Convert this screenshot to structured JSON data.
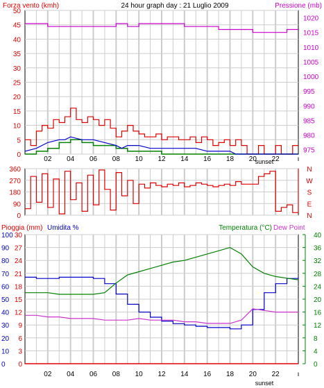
{
  "header": {
    "left_label": "Forza vento (kmh)",
    "title": "24 hour graph day : 21 Luglio 2009",
    "right_label": "Pressione (mb)"
  },
  "lower_header": {
    "rain_label": "Pioggia (mm)",
    "humidity_label": "Umidita %",
    "temp_label": "Temperatura (°C)",
    "dew_label": "Dew Point"
  },
  "sunset_label": "sunset",
  "colors": {
    "wind_gust": "#dd0000",
    "wind_avg": "#0000cc",
    "wind_low": "#008000",
    "pressure": "#cc00cc",
    "direction": "#dd0000",
    "rain": "#dd0000",
    "humidity": "#0000cc",
    "temperature": "#008000",
    "dew_point": "#cc33cc",
    "grid": "#cccccc",
    "frame": "#000000"
  },
  "chart_data": [
    {
      "type": "line",
      "title": "24 hour graph day : 21 Luglio 2009",
      "x_tick_labels": [
        "02",
        "04",
        "06",
        "08",
        "10",
        "12",
        "14",
        "16",
        "18",
        "20",
        "22"
      ],
      "x_range_hours": [
        0,
        24
      ],
      "y_left_label": "Forza vento (kmh)",
      "y_left_ticks": [
        0,
        5,
        10,
        15,
        20,
        25,
        30,
        35,
        40,
        45,
        50
      ],
      "y_left_range": [
        0,
        50
      ],
      "y_right_label": "Pressione (mb)",
      "y_right_ticks": [
        975,
        980,
        985,
        990,
        995,
        1000,
        1005,
        1010,
        1015,
        1020
      ],
      "y_right_range": [
        973.5,
        1022.5
      ],
      "grid": true,
      "series": [
        {
          "name": "Forza vento (kmh)",
          "axis": "left",
          "x": [
            0,
            0.5,
            1,
            1.5,
            2,
            2.5,
            3,
            3.5,
            4,
            4.5,
            5,
            5.5,
            6,
            6.5,
            7,
            7.5,
            8,
            8.5,
            9,
            9.5,
            10,
            10.5,
            11,
            11.5,
            12,
            12.5,
            13,
            13.5,
            14,
            14.5,
            15,
            15.5,
            16,
            16.5,
            17,
            17.5,
            18,
            18.5,
            19,
            19.5,
            20,
            20.5,
            21,
            21.5,
            22,
            22.5,
            23,
            23.5,
            24
          ],
          "y": [
            5,
            3,
            8,
            10,
            9,
            12,
            11,
            13,
            16,
            12,
            11,
            13,
            12,
            10,
            12,
            9,
            6,
            8,
            10,
            8,
            7,
            6,
            6,
            7,
            5,
            6,
            6,
            5,
            5,
            6,
            4,
            6,
            5,
            3,
            4,
            5,
            3,
            5,
            3,
            0,
            0,
            3,
            0,
            0,
            3,
            0,
            0,
            3,
            3
          ]
        },
        {
          "name": "Wind average",
          "axis": "left",
          "x": [
            0,
            1,
            2,
            3,
            3.5,
            4,
            5,
            6,
            7,
            8,
            8.5,
            9,
            10,
            11,
            12,
            13,
            14,
            15,
            16,
            17,
            18,
            18.5,
            24
          ],
          "y": [
            1,
            2,
            4,
            5,
            5,
            6,
            5,
            5,
            4,
            3,
            2,
            3,
            3,
            2,
            2,
            2,
            2,
            2,
            1,
            1,
            1,
            0,
            0
          ]
        },
        {
          "name": "Wind low",
          "axis": "left",
          "x": [
            0,
            1,
            2,
            3,
            4,
            5,
            6,
            7,
            8,
            9,
            10,
            11,
            12,
            13,
            14,
            15,
            16,
            17,
            18,
            19,
            24
          ],
          "y": [
            0,
            1,
            2,
            4,
            5,
            4,
            3,
            3,
            2,
            1,
            1,
            1,
            0,
            0,
            0,
            0,
            0,
            0,
            0,
            0,
            0
          ]
        },
        {
          "name": "Pressione (mb)",
          "axis": "right",
          "x": [
            0,
            1,
            2,
            3,
            4,
            5,
            6,
            7,
            8,
            9,
            10,
            11,
            12,
            13,
            14,
            15,
            16,
            17,
            18,
            19,
            20,
            21,
            22,
            23,
            24
          ],
          "y": [
            1018,
            1018,
            1017,
            1017,
            1017,
            1017,
            1017,
            1017,
            1018,
            1017,
            1018,
            1018,
            1018,
            1018,
            1017,
            1017,
            1017,
            1016,
            1016,
            1016,
            1015,
            1015,
            1015,
            1016,
            1016
          ]
        }
      ]
    },
    {
      "type": "line",
      "x_tick_labels": [],
      "y_left_ticks": [
        0,
        90,
        180,
        270,
        360
      ],
      "y_left_range": [
        0,
        360
      ],
      "y_right_ticks": [
        "N",
        "E",
        "S",
        "W",
        "N"
      ],
      "grid": true,
      "series": [
        {
          "name": "Direzione vento",
          "x": [
            0,
            0.5,
            1,
            1.5,
            2,
            2.5,
            3,
            3.5,
            4,
            4.5,
            5,
            5.5,
            6,
            6.5,
            7,
            7.5,
            8,
            8.5,
            9,
            9.5,
            10,
            10.5,
            11,
            11.5,
            12,
            12.5,
            13,
            13.5,
            14,
            14.5,
            15,
            15.5,
            16,
            16.5,
            17,
            17.5,
            18,
            18.5,
            19,
            19.5,
            20,
            20.5,
            21,
            21.5,
            22,
            22.5,
            23,
            23.5,
            24
          ],
          "y": [
            50,
            300,
            100,
            320,
            60,
            280,
            10,
            340,
            120,
            250,
            30,
            310,
            80,
            350,
            200,
            40,
            330,
            150,
            270,
            90,
            240,
            210,
            250,
            230,
            220,
            240,
            230,
            250,
            220,
            230,
            250,
            240,
            230,
            220,
            230,
            240,
            230,
            260,
            240,
            240,
            240,
            300,
            320,
            340,
            30,
            60,
            80,
            20,
            360
          ]
        }
      ]
    },
    {
      "type": "line",
      "x_tick_labels": [
        "02",
        "04",
        "06",
        "08",
        "10",
        "12",
        "14",
        "16",
        "18",
        "20",
        "22"
      ],
      "x_range_hours": [
        0,
        24
      ],
      "y_rain_label": "Pioggia (mm)",
      "y_rain_ticks": [
        0,
        3,
        6,
        9,
        12,
        15,
        18,
        21,
        24,
        27,
        30
      ],
      "y_rain_range": [
        0,
        30
      ],
      "y_humidity_label": "Umidita %",
      "y_humidity_ticks": [
        0,
        10,
        20,
        30,
        40,
        50,
        60,
        70,
        80,
        90,
        100
      ],
      "y_humidity_range": [
        0,
        100
      ],
      "y_temp_label": "Temperatura (°C)",
      "y_temp_ticks": [
        0,
        4,
        8,
        12,
        16,
        20,
        24,
        28,
        32,
        36,
        40
      ],
      "y_temp_range": [
        0,
        40
      ],
      "right_label_2": "Dew Point",
      "grid": true,
      "series": [
        {
          "name": "Pioggia (mm)",
          "axis": "rain",
          "x": [
            0,
            24
          ],
          "y": [
            0,
            0
          ]
        },
        {
          "name": "Umidita %",
          "axis": "humidity",
          "x": [
            0,
            1,
            2,
            3,
            4,
            5,
            6,
            7,
            8,
            9,
            10,
            11,
            12,
            13,
            14,
            15,
            16,
            17,
            18,
            19,
            20,
            21,
            22,
            23,
            24
          ],
          "y": [
            67,
            66,
            66,
            67,
            67,
            67,
            66,
            62,
            54,
            46,
            40,
            36,
            33,
            31,
            30,
            29,
            28,
            28,
            27,
            30,
            42,
            55,
            62,
            66,
            67
          ]
        },
        {
          "name": "Temperatura (°C)",
          "axis": "temp",
          "x": [
            0,
            1,
            2,
            3,
            4,
            5,
            6,
            7,
            8,
            9,
            10,
            11,
            12,
            13,
            14,
            15,
            16,
            17,
            18,
            19,
            20,
            21,
            22,
            23,
            24
          ],
          "y": [
            22,
            22,
            22,
            21.5,
            21.5,
            21.5,
            21.5,
            22,
            25,
            27.5,
            28.5,
            29.5,
            30.5,
            31.5,
            32,
            33,
            34,
            35,
            36,
            34,
            30,
            28,
            27,
            26.5,
            26
          ]
        },
        {
          "name": "Dew Point",
          "axis": "temp",
          "x": [
            0,
            1,
            2,
            3,
            4,
            5,
            6,
            7,
            8,
            9,
            10,
            11,
            12,
            13,
            14,
            15,
            16,
            17,
            18,
            19,
            20,
            21,
            22,
            23,
            24
          ],
          "y": [
            15,
            15,
            14.5,
            14.5,
            14,
            14,
            14,
            13.5,
            13.5,
            13.5,
            14,
            13.5,
            13.5,
            13.5,
            13,
            13,
            12.5,
            12.5,
            12.5,
            13.5,
            17,
            16.5,
            16,
            16,
            16
          ]
        }
      ]
    }
  ]
}
